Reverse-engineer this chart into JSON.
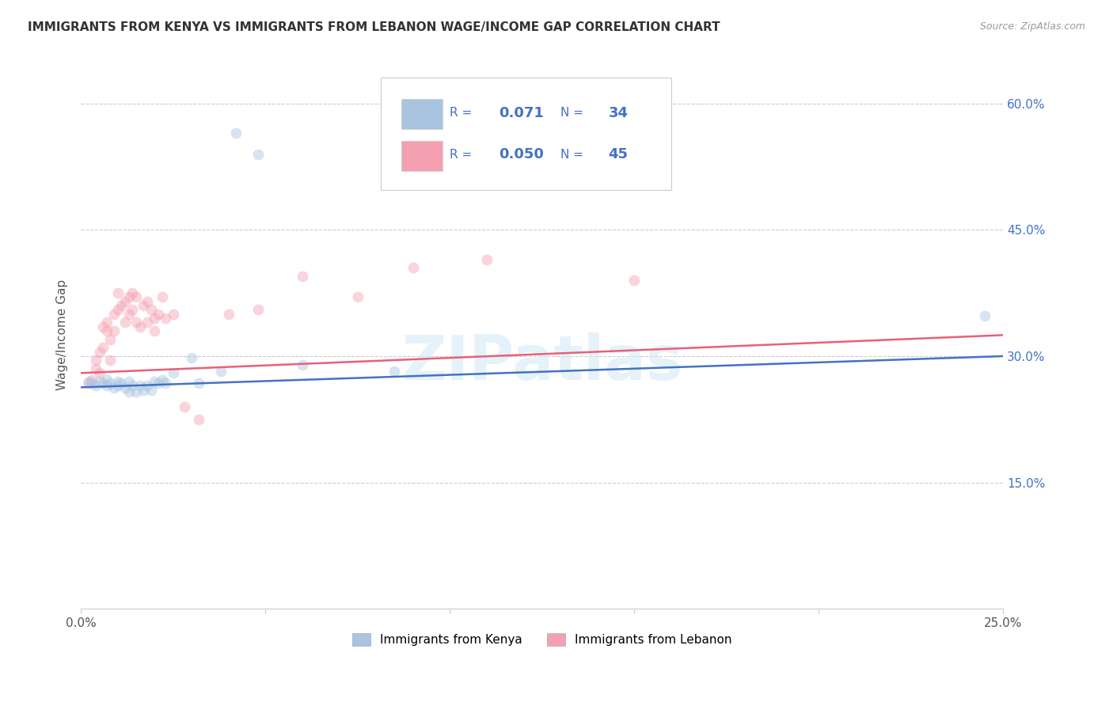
{
  "title": "IMMIGRANTS FROM KENYA VS IMMIGRANTS FROM LEBANON WAGE/INCOME GAP CORRELATION CHART",
  "source": "Source: ZipAtlas.com",
  "ylabel": "Wage/Income Gap",
  "xlim": [
    0.0,
    0.25
  ],
  "ylim": [
    0.0,
    0.65
  ],
  "xticks": [
    0.0,
    0.05,
    0.1,
    0.15,
    0.2,
    0.25
  ],
  "yticks": [
    0.0,
    0.15,
    0.3,
    0.45,
    0.6
  ],
  "xticklabels": [
    "0.0%",
    "",
    "",
    "",
    "",
    "25.0%"
  ],
  "right_yticklabels": [
    "",
    "15.0%",
    "30.0%",
    "45.0%",
    "60.0%"
  ],
  "kenya_color": "#a8c4e0",
  "lebanon_color": "#f4a0b0",
  "kenya_line_color": "#4472c4",
  "lebanon_line_color": "#e8607a",
  "legend_kenya_label": "Immigrants from Kenya",
  "legend_lebanon_label": "Immigrants from Lebanon",
  "kenya_R": "0.071",
  "kenya_N": "34",
  "lebanon_R": "0.050",
  "lebanon_N": "45",
  "watermark": "ZIPatlas",
  "kenya_scatter_x": [
    0.002,
    0.003,
    0.004,
    0.005,
    0.006,
    0.007,
    0.007,
    0.008,
    0.009,
    0.01,
    0.01,
    0.011,
    0.012,
    0.013,
    0.013,
    0.014,
    0.015,
    0.016,
    0.017,
    0.018,
    0.019,
    0.02,
    0.021,
    0.022,
    0.023,
    0.025,
    0.03,
    0.032,
    0.038,
    0.042,
    0.048,
    0.06,
    0.085,
    0.245
  ],
  "kenya_scatter_y": [
    0.27,
    0.268,
    0.265,
    0.27,
    0.268,
    0.265,
    0.272,
    0.268,
    0.262,
    0.265,
    0.27,
    0.268,
    0.262,
    0.258,
    0.27,
    0.265,
    0.258,
    0.265,
    0.26,
    0.265,
    0.26,
    0.27,
    0.268,
    0.272,
    0.268,
    0.28,
    0.298,
    0.268,
    0.282,
    0.565,
    0.54,
    0.29,
    0.282,
    0.348
  ],
  "lebanon_scatter_x": [
    0.002,
    0.003,
    0.004,
    0.004,
    0.005,
    0.005,
    0.006,
    0.006,
    0.007,
    0.007,
    0.008,
    0.008,
    0.009,
    0.009,
    0.01,
    0.01,
    0.011,
    0.012,
    0.012,
    0.013,
    0.013,
    0.014,
    0.014,
    0.015,
    0.015,
    0.016,
    0.017,
    0.018,
    0.018,
    0.019,
    0.02,
    0.02,
    0.021,
    0.022,
    0.023,
    0.025,
    0.028,
    0.032,
    0.04,
    0.048,
    0.06,
    0.075,
    0.09,
    0.11,
    0.15
  ],
  "lebanon_scatter_y": [
    0.268,
    0.272,
    0.285,
    0.295,
    0.28,
    0.305,
    0.335,
    0.31,
    0.33,
    0.34,
    0.295,
    0.32,
    0.33,
    0.35,
    0.355,
    0.375,
    0.36,
    0.34,
    0.365,
    0.35,
    0.37,
    0.355,
    0.375,
    0.34,
    0.37,
    0.335,
    0.36,
    0.34,
    0.365,
    0.355,
    0.345,
    0.33,
    0.35,
    0.37,
    0.345,
    0.35,
    0.24,
    0.225,
    0.35,
    0.355,
    0.395,
    0.37,
    0.405,
    0.415,
    0.39
  ],
  "kenya_trend_x": [
    0.0,
    0.25
  ],
  "kenya_trend_y": [
    0.263,
    0.3
  ],
  "lebanon_trend_x": [
    0.0,
    0.25
  ],
  "lebanon_trend_y": [
    0.28,
    0.325
  ],
  "bg_color": "#ffffff",
  "grid_color": "#cccccc",
  "title_color": "#333333",
  "right_axis_color": "#4472c4",
  "scatter_size": 100,
  "scatter_alpha": 0.45
}
